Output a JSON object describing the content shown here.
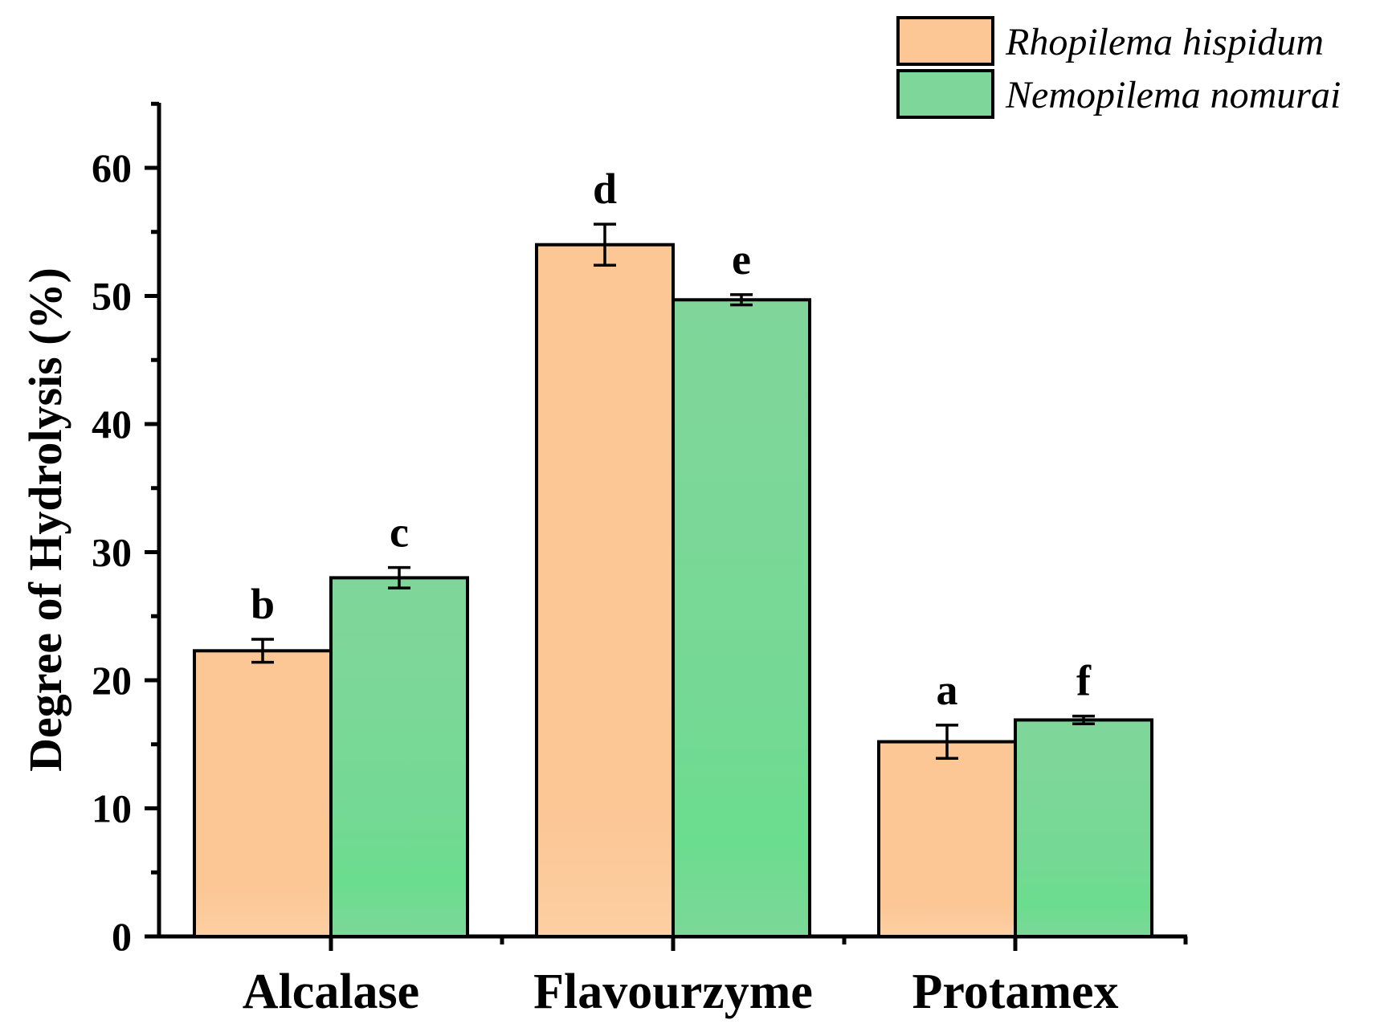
{
  "chart_data": {
    "type": "bar",
    "title": "",
    "xlabel": "",
    "ylabel": "Degree of Hydrolysis (%)",
    "ylim": [
      0,
      65
    ],
    "yticks": [
      0,
      10,
      20,
      30,
      40,
      50,
      60
    ],
    "grid": false,
    "legend_position": "top-right",
    "categories": [
      "Alcalase",
      "Flavourzyme",
      "Protamex"
    ],
    "series": [
      {
        "name": "Rhopilema hispidum",
        "color": "#FCC695",
        "values": [
          22.3,
          54.0,
          15.2
        ],
        "errors": [
          0.9,
          1.6,
          1.3
        ],
        "labels": [
          "b",
          "d",
          "a"
        ]
      },
      {
        "name": "Nemopilema nomurai",
        "color": "#7FD69A",
        "values": [
          28.0,
          49.7,
          16.9
        ],
        "errors": [
          0.8,
          0.4,
          0.3
        ],
        "labels": [
          "c",
          "e",
          "f"
        ]
      }
    ]
  }
}
